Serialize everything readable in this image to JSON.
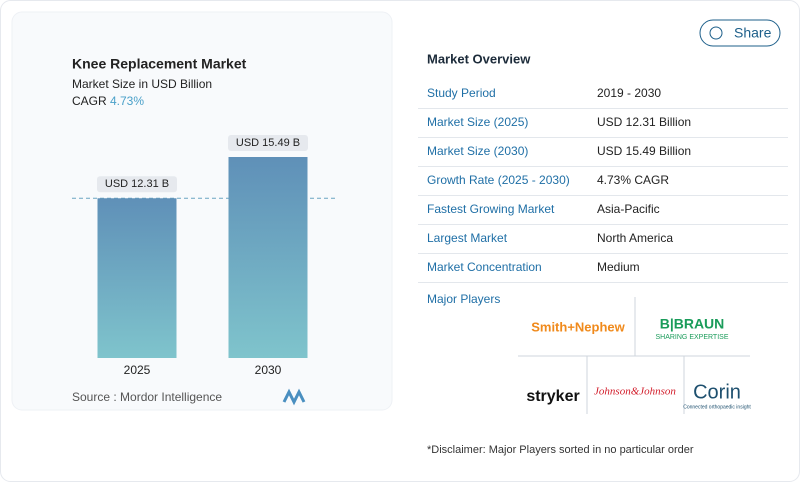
{
  "chart_data": {
    "type": "bar",
    "title": "Knee Replacement Market",
    "subtitle": "Market Size in USD Billion",
    "cagr_label": "CAGR",
    "cagr_value": "4.73%",
    "categories": [
      "2025",
      "2030"
    ],
    "values": [
      12.31,
      15.49
    ],
    "value_labels": [
      "USD 12.31 B",
      "USD 15.49 B"
    ],
    "color": "#6aa5c2",
    "source": "Source :  Mordor Intelligence"
  },
  "share": "Share",
  "overview": {
    "title": "Market Overview",
    "rows": [
      [
        "Study Period",
        "2019 - 2030"
      ],
      [
        "Market Size (2025)",
        "USD 12.31 Billion"
      ],
      [
        "Market Size (2030)",
        "USD 15.49 Billion"
      ],
      [
        "Growth Rate (2025 - 2030)",
        "4.73% CAGR"
      ],
      [
        "Fastest Growing Market",
        "Asia-Pacific"
      ],
      [
        "Largest Market",
        "North America"
      ],
      [
        "Market Concentration",
        "Medium"
      ]
    ]
  },
  "players": {
    "title": "Major Players",
    "smith": "Smith+Nephew",
    "braun": "B|BRAUN",
    "braun_tag": "SHARING EXPERTISE",
    "stryker": "stryker",
    "jnj": "Johnson&Johnson",
    "corin": "Corin",
    "corin_tag": "Connected orthopaedic insight"
  },
  "disclaimer": "*Disclaimer: Major Players sorted in no particular order"
}
